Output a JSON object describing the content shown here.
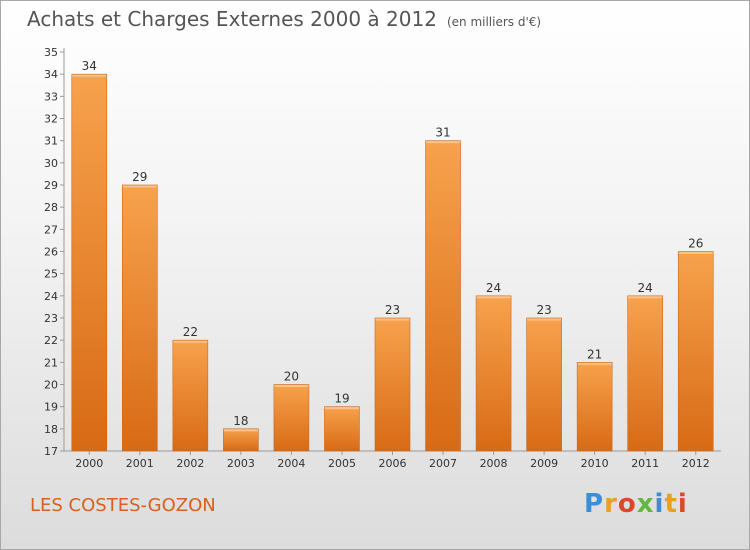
{
  "header": {
    "title": "Achats et Charges Externes 2000 à 2012",
    "unit": "(en milliers d'€)"
  },
  "footer": {
    "commune": "LES COSTES-GOZON",
    "brand": "Proxiti"
  },
  "colors": {
    "bar_light": "#f7a24d",
    "bar_dark": "#d86a15",
    "axis": "#9a9a9a",
    "text": "#333333",
    "commune_text": "#d9601d"
  },
  "chart_data": {
    "type": "bar",
    "title": "Achats et Charges Externes 2000 à 2012",
    "subtitle": "(en milliers d'€)",
    "xlabel": "",
    "ylabel": "",
    "categories": [
      "2000",
      "2001",
      "2002",
      "2003",
      "2004",
      "2005",
      "2006",
      "2007",
      "2008",
      "2009",
      "2010",
      "2011",
      "2012"
    ],
    "values": [
      34,
      29,
      22,
      18,
      20,
      19,
      23,
      31,
      24,
      23,
      21,
      24,
      26
    ],
    "ylim": [
      17,
      35
    ],
    "yticks": [
      17,
      18,
      19,
      20,
      21,
      22,
      23,
      24,
      25,
      26,
      27,
      28,
      29,
      30,
      31,
      32,
      33,
      34,
      35
    ],
    "grid": false,
    "data_labels": true,
    "legend": "none"
  }
}
